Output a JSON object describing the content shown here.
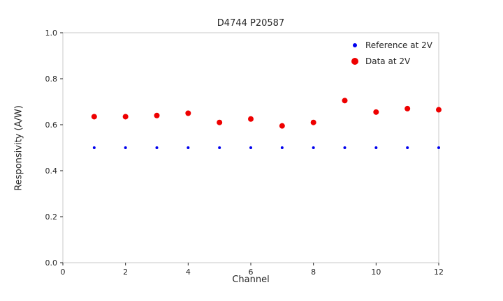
{
  "chart_data": {
    "type": "scatter",
    "title": "D4744 P20587",
    "xlabel": "Channel",
    "ylabel": "Responsivity (A/W)",
    "xlim": [
      0,
      12
    ],
    "ylim": [
      0.0,
      1.0
    ],
    "x_ticks": [
      "0",
      "2",
      "4",
      "6",
      "8",
      "10",
      "12"
    ],
    "x_tick_values": [
      0,
      2,
      4,
      6,
      8,
      10,
      12
    ],
    "y_ticks": [
      "0.0",
      "0.2",
      "0.4",
      "0.6",
      "0.8",
      "1.0"
    ],
    "y_tick_values": [
      0.0,
      0.2,
      0.4,
      0.6,
      0.8,
      1.0
    ],
    "grid": false,
    "legend_position": "upper right",
    "x": [
      1,
      2,
      3,
      4,
      5,
      6,
      7,
      8,
      9,
      10,
      11,
      12
    ],
    "series": [
      {
        "name": "Reference at 2V",
        "color": "#0000ee",
        "marker_radius": 2,
        "legend_marker_size": 6,
        "values": [
          0.5,
          0.5,
          0.5,
          0.5,
          0.5,
          0.5,
          0.5,
          0.5,
          0.5,
          0.5,
          0.5,
          0.5
        ]
      },
      {
        "name": "Data at 2V",
        "color": "#ee0000",
        "marker_radius": 4,
        "legend_marker_size": 10,
        "values": [
          0.635,
          0.635,
          0.64,
          0.65,
          0.61,
          0.625,
          0.595,
          0.61,
          0.705,
          0.655,
          0.67,
          0.665
        ]
      }
    ],
    "axis_border_color": "#c8c8c8",
    "tick_color": "#262626"
  }
}
